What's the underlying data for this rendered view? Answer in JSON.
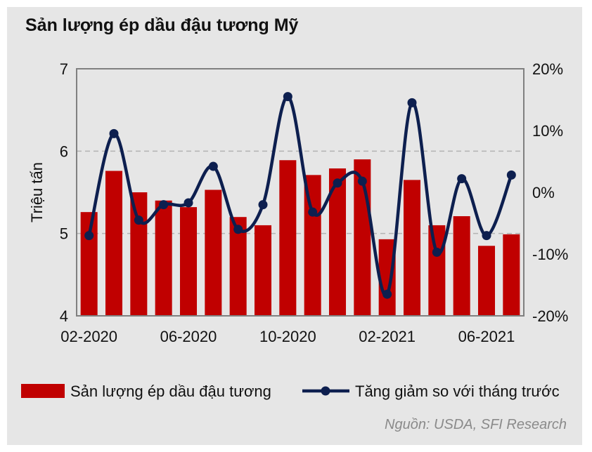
{
  "colors": {
    "panel_bg": "#e6e6e6",
    "bar": "#c00000",
    "line": "#0d1f4f",
    "grid": "#b3b3b3"
  },
  "chart_data": {
    "type": "bar",
    "title": "Sản lượng ép dầu đậu tương Mỹ",
    "ylabel": "Triệu tấn",
    "ylim": [
      4,
      7
    ],
    "y_ticks": [
      "4",
      "5",
      "6",
      "7"
    ],
    "y2lim": [
      -0.2,
      0.2
    ],
    "y2_ticks": [
      "-20%",
      "-10%",
      "0%",
      "10%",
      "20%"
    ],
    "x_tick_labels": [
      "02-2020",
      "06-2020",
      "10-2020",
      "02-2021",
      "06-2021"
    ],
    "categories": [
      "02-2020",
      "03-2020",
      "04-2020",
      "05-2020",
      "06-2020",
      "07-2020",
      "08-2020",
      "09-2020",
      "10-2020",
      "11-2020",
      "12-2020",
      "01-2021",
      "02-2021",
      "03-2021",
      "04-2021",
      "05-2021",
      "06-2021",
      "07-2021"
    ],
    "grid": "dashed horizontal at 5 and 6",
    "legend_position": "bottom",
    "series": [
      {
        "name": "Sản lượng ép dầu đậu tương",
        "type": "bar",
        "axis": "left",
        "values": [
          5.26,
          5.76,
          5.5,
          5.4,
          5.32,
          5.53,
          5.2,
          5.1,
          5.89,
          5.71,
          5.79,
          5.9,
          4.93,
          5.65,
          5.1,
          5.21,
          4.85,
          4.99
        ]
      },
      {
        "name": "Tăng giảm so với tháng trước",
        "type": "line",
        "axis": "right",
        "values": [
          -0.07,
          0.095,
          -0.045,
          -0.02,
          -0.017,
          0.042,
          -0.06,
          -0.02,
          0.155,
          -0.032,
          0.015,
          0.018,
          -0.165,
          0.145,
          -0.097,
          0.022,
          -0.07,
          0.028
        ]
      }
    ]
  },
  "source": "Nguồn: USDA, SFI Research"
}
